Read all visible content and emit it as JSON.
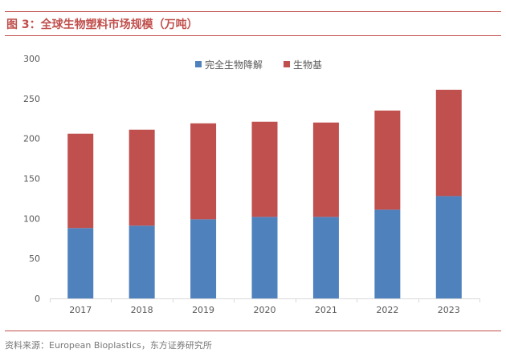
{
  "header": {
    "title": "图 3：全球生物塑料市场规模（万吨）"
  },
  "footer": {
    "source": "资料来源：European Bioplastics，东方证券研究所"
  },
  "chart_data": {
    "type": "bar",
    "stacked": true,
    "title": "",
    "xlabel": "",
    "ylabel": "",
    "categories": [
      "2017",
      "2018",
      "2019",
      "2020",
      "2021",
      "2022",
      "2023"
    ],
    "series": [
      {
        "name": "完全生物降解",
        "color": "#4f81bd",
        "values": [
          88,
          91,
          99,
          102,
          102,
          111,
          128
        ]
      },
      {
        "name": "生物基",
        "color": "#c0504d",
        "values": [
          118,
          120,
          120,
          119,
          118,
          124,
          133
        ]
      }
    ],
    "ylim": [
      0,
      300
    ],
    "yticks": [
      0,
      50,
      100,
      150,
      200,
      250,
      300
    ],
    "grid": false,
    "legend": "top-right"
  },
  "colors": {
    "accent": "#c0504d",
    "axis": "#d9d9d9",
    "tick_text": "#595959"
  }
}
